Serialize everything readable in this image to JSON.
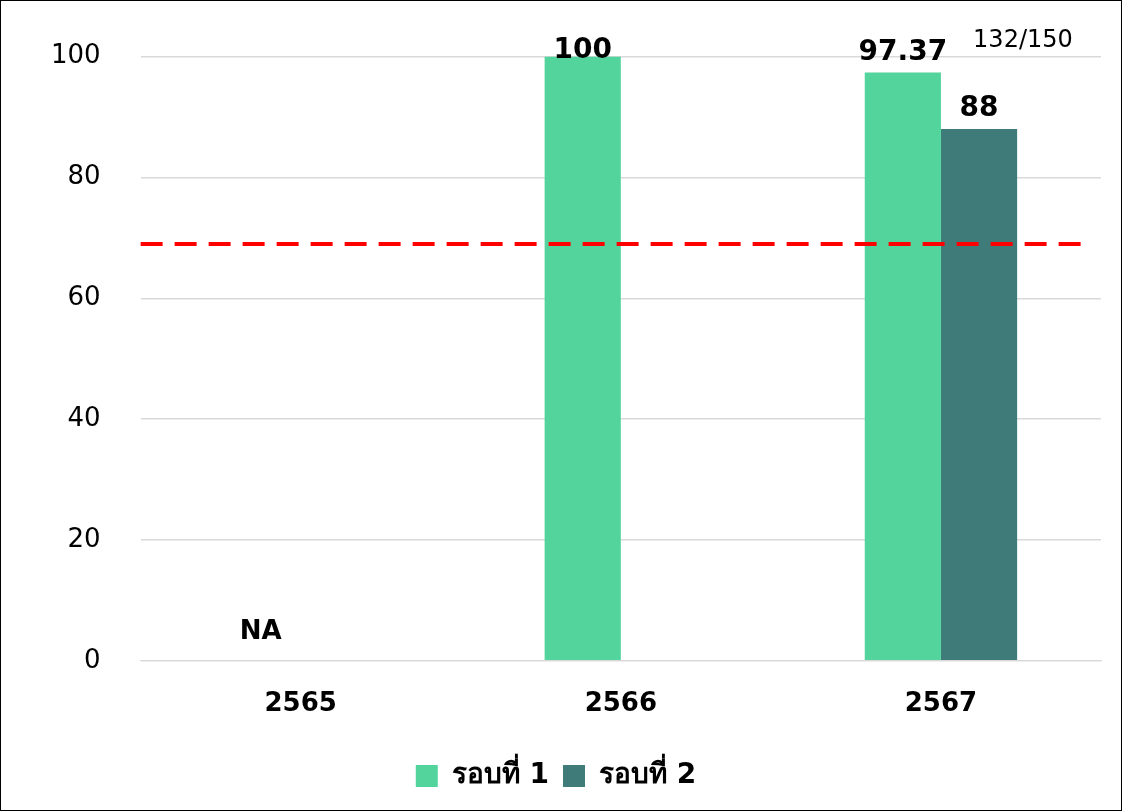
{
  "chart_data": {
    "type": "bar",
    "categories": [
      "2565",
      "2566",
      "2567"
    ],
    "series": [
      {
        "name": "รอบที่ 1",
        "color": "#52d49c",
        "values": [
          null,
          100,
          97.37
        ]
      },
      {
        "name": "รอบที่ 2",
        "color": "#3f7b78",
        "values": [
          null,
          null,
          88
        ]
      }
    ],
    "ylim": [
      0,
      100
    ],
    "yticks": [
      0,
      20,
      40,
      60,
      80,
      100
    ],
    "grid": "y",
    "legend": "bottom",
    "data_labels": true,
    "ref_lines": [
      {
        "axis": "y",
        "value": 69,
        "color": "#ff0000",
        "line_style": "dashed"
      }
    ],
    "annotations": [
      "NA",
      "132/150"
    ]
  }
}
